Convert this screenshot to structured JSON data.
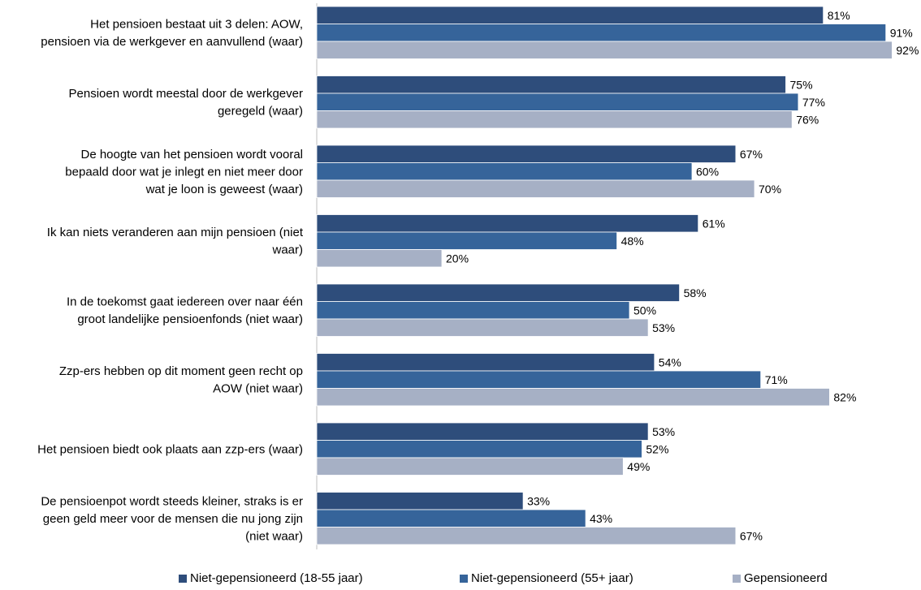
{
  "chart_data": {
    "type": "bar",
    "orientation": "horizontal",
    "categories": [
      [
        "Het pensioen bestaat uit 3 delen: AOW,",
        "pensioen via de werkgever en aanvullend (waar)"
      ],
      [
        "Pensioen wordt meestal door de werkgever",
        "geregeld (waar)"
      ],
      [
        "De hoogte van het pensioen wordt vooral",
        "bepaald door wat je inlegt en niet meer door",
        "wat je loon is geweest (waar)"
      ],
      [
        "Ik kan niets veranderen aan mijn pensioen (niet",
        "waar)"
      ],
      [
        "In de toekomst gaat iedereen over naar één",
        "groot landelijke pensioenfonds (niet waar)"
      ],
      [
        "Zzp-ers hebben op dit moment geen recht op",
        "AOW (niet waar)"
      ],
      [
        "Het pensioen biedt ook plaats aan zzp-ers (waar)"
      ],
      [
        "De pensioenpot wordt steeds kleiner, straks is er",
        "geen geld meer voor de mensen die nu jong zijn",
        "(niet waar)"
      ]
    ],
    "series": [
      {
        "name": "Niet-gepensioneerd (18-55 jaar)",
        "color": "#2e4d7b",
        "values": [
          81,
          75,
          67,
          61,
          58,
          54,
          53,
          33
        ]
      },
      {
        "name": "Niet-gepensioneerd (55+ jaar)",
        "color": "#36649a",
        "values": [
          91,
          77,
          60,
          48,
          50,
          71,
          52,
          43
        ]
      },
      {
        "name": "Gepensioneerd",
        "color": "#a6b0c5",
        "values": [
          92,
          76,
          70,
          20,
          53,
          82,
          49,
          67
        ]
      }
    ],
    "value_suffix": "%",
    "xlim": [
      0,
      100
    ],
    "grid": false,
    "legend_position": "bottom"
  }
}
